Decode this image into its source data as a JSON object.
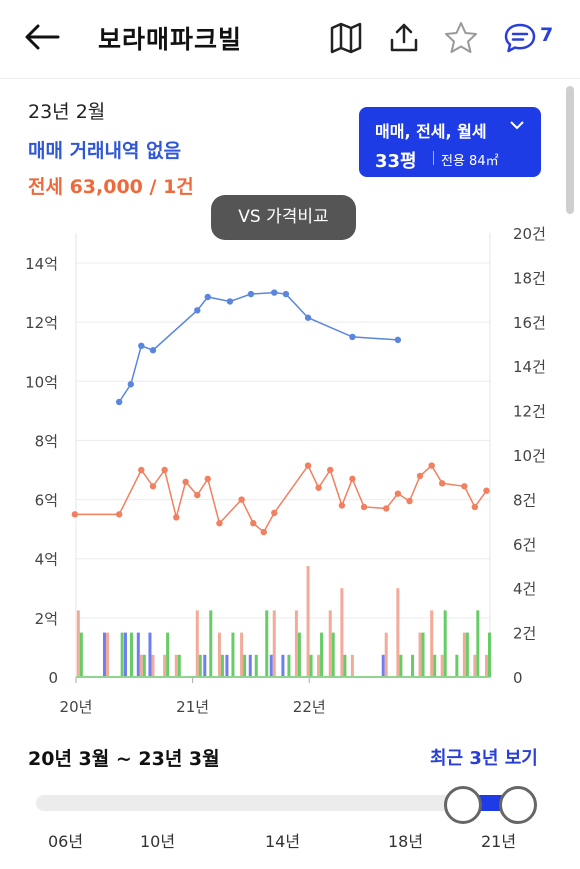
{
  "header": {
    "title": "보라매파크빌",
    "comment_count": "7",
    "icons": [
      "back-arrow-icon",
      "map-icon",
      "share-icon",
      "star-icon",
      "comment-icon"
    ]
  },
  "summary": {
    "period": "23년 2월",
    "sale_text": "매매 거래내역 없음",
    "lease_text": "전세 63,000 / 1건"
  },
  "filter": {
    "types": "매매, 전세, 월세",
    "size": "33평",
    "area": "전용 84㎡"
  },
  "compare_button": "VS 가격비교",
  "colors": {
    "sale": "#5a86e0",
    "lease": "#f08060",
    "volume_sale": "#6f7df2",
    "volume_lease": "#f4a999",
    "volume_green": "#66cc66",
    "accent": "#1e3ce6"
  },
  "chart_data": {
    "type": "line",
    "x_labels": [
      "20년",
      "21년",
      "22년"
    ],
    "left_axis": {
      "unit": "억",
      "ticks": [
        "0",
        "2억",
        "4억",
        "6억",
        "8억",
        "10억",
        "12억",
        "14억"
      ],
      "range": [
        0,
        14
      ]
    },
    "right_axis": {
      "unit": "건",
      "ticks": [
        "0",
        "2건",
        "4건",
        "6건",
        "8건",
        "10건",
        "12건",
        "14건",
        "16건",
        "18건",
        "20건"
      ],
      "range": [
        0,
        20
      ]
    },
    "series": [
      {
        "points": [
          [
            2020.22,
            9.3
          ],
          [
            2020.32,
            9.9
          ],
          [
            2020.41,
            11.2
          ],
          [
            2020.51,
            11.05
          ],
          [
            2020.89,
            12.4
          ],
          [
            2020.98,
            12.85
          ],
          [
            2021.17,
            12.7
          ],
          [
            2021.35,
            12.95
          ],
          [
            2021.55,
            13.0
          ],
          [
            2021.65,
            12.95
          ],
          [
            2021.84,
            12.15
          ],
          [
            2022.22,
            11.5
          ],
          [
            2022.61,
            11.4
          ]
        ]
      },
      {
        "points": [
          [
            2019.84,
            5.5
          ],
          [
            2020.22,
            5.5
          ],
          [
            2020.41,
            7.0
          ],
          [
            2020.51,
            6.45
          ],
          [
            2020.61,
            7.0
          ],
          [
            2020.71,
            5.4
          ],
          [
            2020.79,
            6.6
          ],
          [
            2020.89,
            6.15
          ],
          [
            2020.98,
            6.7
          ],
          [
            2021.08,
            5.2
          ],
          [
            2021.27,
            6.0
          ],
          [
            2021.37,
            5.2
          ],
          [
            2021.46,
            4.9
          ],
          [
            2021.55,
            5.55
          ],
          [
            2021.84,
            7.15
          ],
          [
            2021.93,
            6.4
          ],
          [
            2022.03,
            7.0
          ],
          [
            2022.13,
            5.8
          ],
          [
            2022.22,
            6.7
          ],
          [
            2022.32,
            5.75
          ],
          [
            2022.51,
            5.7
          ],
          [
            2022.61,
            6.2
          ],
          [
            2022.71,
            5.95
          ],
          [
            2022.8,
            6.8
          ],
          [
            2022.9,
            7.15
          ],
          [
            2022.99,
            6.55
          ],
          [
            2023.18,
            6.45
          ],
          [
            2023.27,
            5.75
          ],
          [
            2023.37,
            6.3
          ]
        ]
      }
    ],
    "volume_bars": [
      {
        "x": 2019.87,
        "lease": 3,
        "green": 2
      },
      {
        "x": 2020.12,
        "sale": 2,
        "lease": 2
      },
      {
        "x": 2020.22,
        "green": 2
      },
      {
        "x": 2020.3,
        "sale": 2,
        "green": 2
      },
      {
        "x": 2020.41,
        "sale": 2,
        "lease": 1,
        "green": 1
      },
      {
        "x": 2020.51,
        "sale": 2,
        "lease": 1
      },
      {
        "x": 2020.61,
        "green": 2,
        "lease": 1
      },
      {
        "x": 2020.71,
        "lease": 1,
        "green": 1
      },
      {
        "x": 2020.89,
        "lease": 3,
        "green": 1
      },
      {
        "x": 2020.98,
        "green": 3,
        "sale": 1
      },
      {
        "x": 2021.08,
        "lease": 2,
        "green": 1
      },
      {
        "x": 2021.17,
        "green": 2,
        "sale": 1
      },
      {
        "x": 2021.27,
        "lease": 2,
        "green": 1
      },
      {
        "x": 2021.37,
        "sale": 1,
        "green": 1
      },
      {
        "x": 2021.46,
        "green": 3
      },
      {
        "x": 2021.55,
        "lease": 3,
        "sale": 1
      },
      {
        "x": 2021.65,
        "green": 1,
        "sale": 1
      },
      {
        "x": 2021.74,
        "lease": 3,
        "green": 2
      },
      {
        "x": 2021.84,
        "lease": 5,
        "green": 1
      },
      {
        "x": 2021.93,
        "green": 2,
        "lease": 1
      },
      {
        "x": 2022.03,
        "green": 2,
        "lease": 3
      },
      {
        "x": 2022.13,
        "lease": 4,
        "green": 1
      },
      {
        "x": 2022.22,
        "lease": 1
      },
      {
        "x": 2022.51,
        "lease": 2,
        "sale": 1
      },
      {
        "x": 2022.61,
        "lease": 4,
        "green": 1
      },
      {
        "x": 2022.71,
        "green": 1
      },
      {
        "x": 2022.8,
        "lease": 2,
        "green": 2
      },
      {
        "x": 2022.9,
        "green": 1,
        "lease": 3
      },
      {
        "x": 2022.99,
        "green": 3,
        "lease": 1
      },
      {
        "x": 2023.09,
        "green": 1
      },
      {
        "x": 2023.18,
        "lease": 2,
        "green": 2
      },
      {
        "x": 2023.27,
        "green": 3,
        "lease": 1
      },
      {
        "x": 2023.37,
        "green": 2,
        "lease": 1
      }
    ]
  },
  "range": {
    "text": "20년 3월 ~ 23년 3월",
    "recent_button": "최근 3년 보기",
    "ticks": [
      "06년",
      "10년",
      "14년",
      "18년",
      "21년"
    ]
  }
}
